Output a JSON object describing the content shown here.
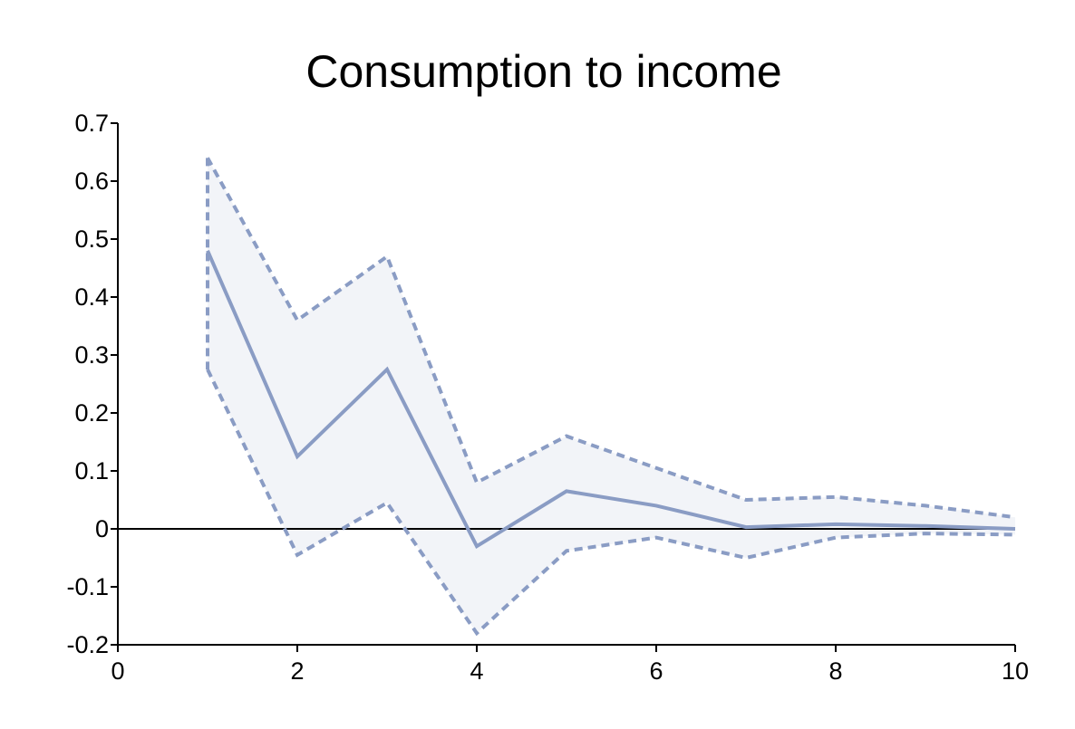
{
  "chart_data": {
    "type": "line",
    "title": "Consumption to income",
    "xlabel": "",
    "ylabel": "",
    "xlim": [
      0,
      10
    ],
    "ylim": [
      -0.2,
      0.7
    ],
    "x_ticks": [
      "0",
      "2",
      "4",
      "6",
      "8",
      "10"
    ],
    "y_ticks": [
      "0.7",
      "0.6",
      "0.5",
      "0.4",
      "0.3",
      "0.2",
      "0.1",
      "0",
      "-0.1",
      "-0.2"
    ],
    "x": [
      1,
      2,
      3,
      4,
      5,
      6,
      7,
      8,
      9,
      10
    ],
    "series": [
      {
        "role": "impulse response",
        "style": "solid",
        "values": [
          0.48,
          0.125,
          0.275,
          -0.03,
          0.065,
          0.04,
          0.003,
          0.008,
          0.005,
          0.0
        ]
      },
      {
        "role": "upper band",
        "style": "dashed",
        "values": [
          0.64,
          0.36,
          0.47,
          0.08,
          0.16,
          0.105,
          0.05,
          0.055,
          0.04,
          0.02
        ]
      },
      {
        "role": "lower band",
        "style": "dashed",
        "values": [
          0.275,
          -0.045,
          0.045,
          -0.18,
          -0.038,
          -0.015,
          -0.05,
          -0.015,
          -0.008,
          -0.01
        ]
      }
    ],
    "zero_line": true,
    "grid": false,
    "legend": "none",
    "colors": {
      "line": "#8a9cc4",
      "band_fill": "#f2f4f8",
      "axis": "#000000"
    }
  }
}
